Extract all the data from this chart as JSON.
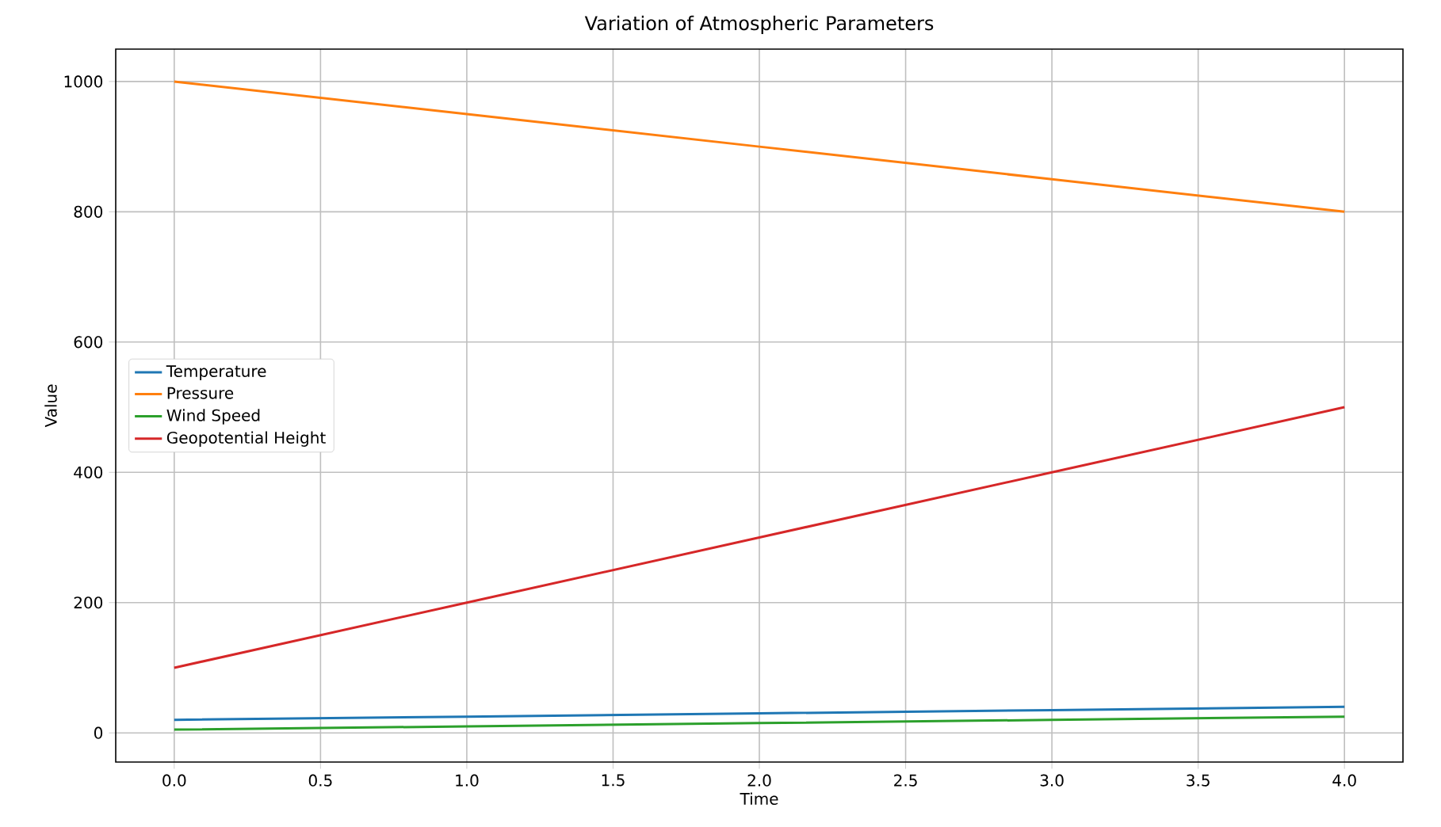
{
  "chart_data": {
    "type": "line",
    "title": "Variation of Atmospheric Parameters",
    "xlabel": "Time",
    "ylabel": "Value",
    "x": [
      0,
      1,
      2,
      3,
      4
    ],
    "series": [
      {
        "name": "Temperature",
        "color": "#1f77b4",
        "values": [
          20,
          25,
          30,
          35,
          40
        ]
      },
      {
        "name": "Pressure",
        "color": "#ff7f0e",
        "values": [
          1000,
          950,
          900,
          850,
          800
        ]
      },
      {
        "name": "Wind Speed",
        "color": "#2ca02c",
        "values": [
          5,
          10,
          15,
          20,
          25
        ]
      },
      {
        "name": "Geopotential Height",
        "color": "#d62728",
        "values": [
          100,
          200,
          300,
          400,
          500
        ]
      }
    ],
    "xlim": [
      -0.2,
      4.2
    ],
    "ylim": [
      -44.75,
      1049.75
    ],
    "xticks": [
      {
        "value": 0,
        "label": "0.0"
      },
      {
        "value": 0.5,
        "label": "0.5"
      },
      {
        "value": 1,
        "label": "1.0"
      },
      {
        "value": 1.5,
        "label": "1.5"
      },
      {
        "value": 2,
        "label": "2.0"
      },
      {
        "value": 2.5,
        "label": "2.5"
      },
      {
        "value": 3,
        "label": "3.0"
      },
      {
        "value": 3.5,
        "label": "3.5"
      },
      {
        "value": 4,
        "label": "4.0"
      }
    ],
    "yticks": [
      0,
      200,
      400,
      600,
      800,
      1000
    ],
    "grid": true,
    "legend": "left",
    "marker": "none",
    "line_style": "solid"
  }
}
